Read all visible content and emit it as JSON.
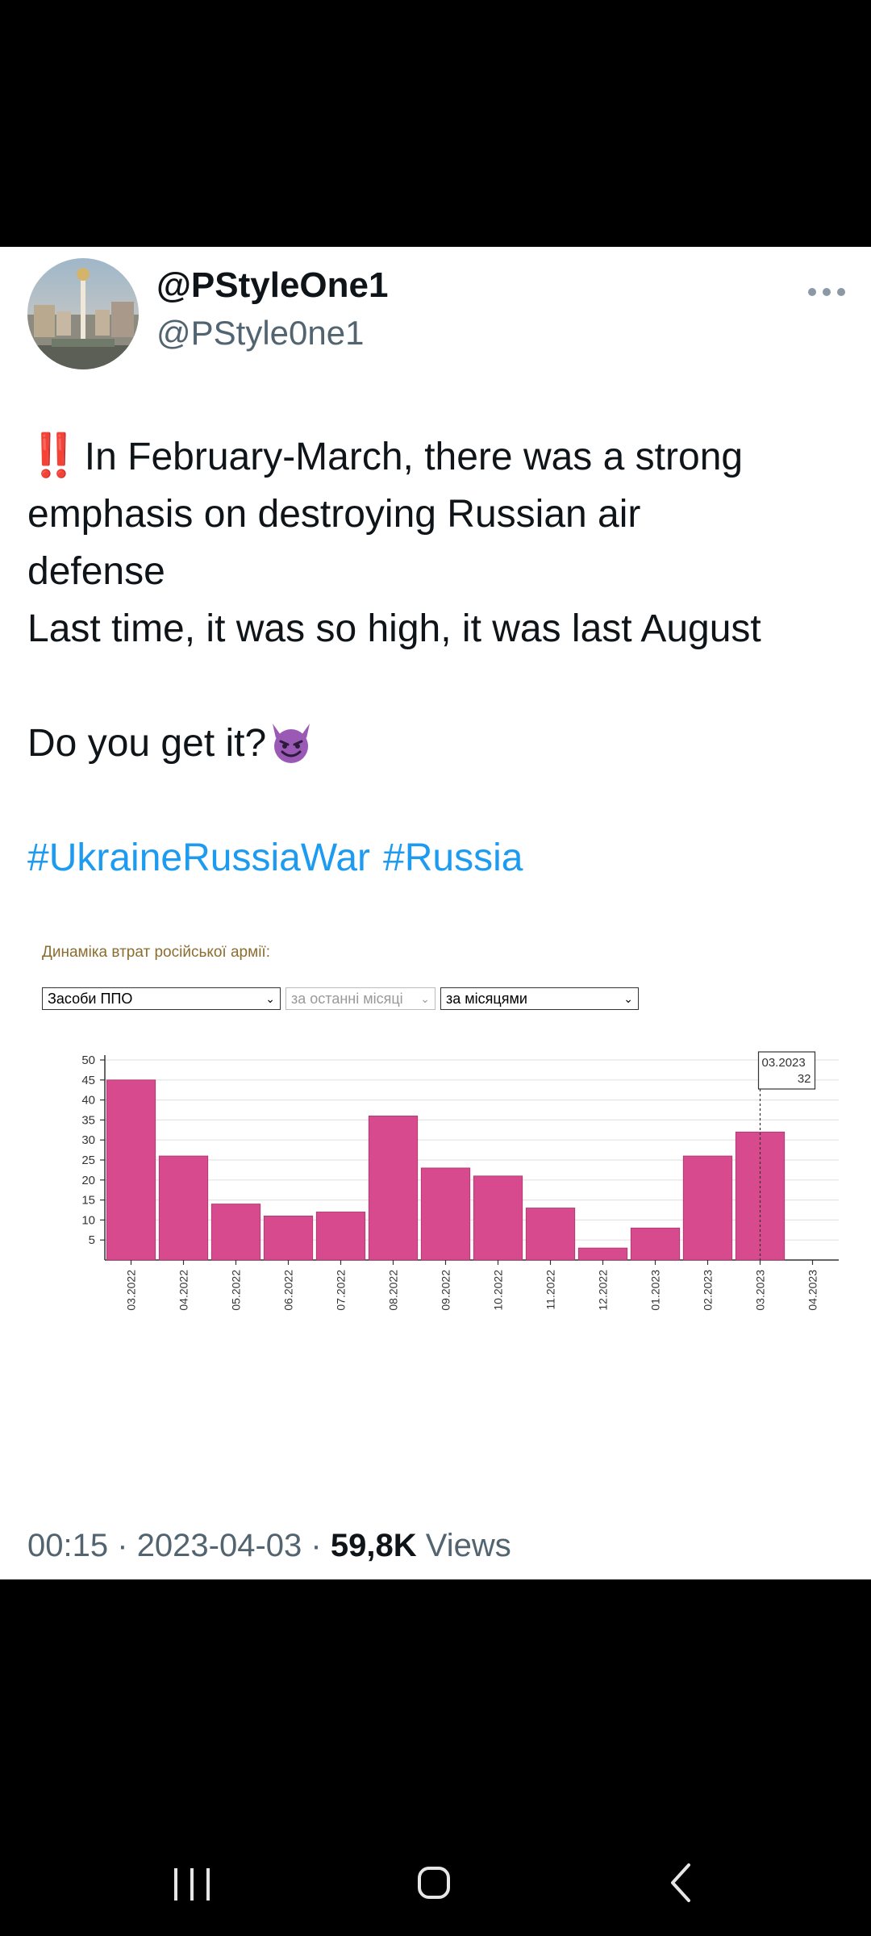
{
  "tweet": {
    "display_name": "@PStyleOne1",
    "handle": "@PStyle0ne1",
    "emphasis_glyph": "‼️",
    "text_lines": [
      "In February-March, there was a strong",
      "emphasis on destroying Russian air",
      "defense",
      "Last time, it was so high, it was last August"
    ],
    "question": "Do you get it?",
    "question_emoji": "smiling-devil-icon",
    "hashtags": [
      "#UkraineRussiaWar",
      "#Russia"
    ],
    "time": "00:15",
    "separator": "·",
    "date": "2023-04-03",
    "views_count": "59,8K",
    "views_label": "Views"
  },
  "chart_controls": {
    "heading": "Динаміка втрат російської армії:",
    "category_select": "Засоби ППО",
    "period_select": "за останні місяці",
    "grouping_select": "за місяцями"
  },
  "chart_data": {
    "type": "bar",
    "categories": [
      "03.2022",
      "04.2022",
      "05.2022",
      "06.2022",
      "07.2022",
      "08.2022",
      "09.2022",
      "10.2022",
      "11.2022",
      "12.2022",
      "01.2023",
      "02.2023",
      "03.2023",
      "04.2023"
    ],
    "values": [
      45,
      26,
      14,
      11,
      12,
      36,
      23,
      21,
      13,
      3,
      8,
      26,
      32,
      0
    ],
    "ylim": [
      0,
      50
    ],
    "yticks": [
      5,
      10,
      15,
      20,
      25,
      30,
      35,
      40,
      45,
      50
    ],
    "grid": true,
    "bar_color": "#d84a8e",
    "tooltip": {
      "category": "03.2023",
      "value": "32"
    }
  },
  "colors": {
    "hashtag": "#1d9bf0",
    "bar": "#d84a8e",
    "secondary_text": "#536471"
  },
  "navbar": {
    "recent_icon": "recent-apps-icon",
    "home_icon": "home-icon",
    "back_icon": "back-icon"
  }
}
